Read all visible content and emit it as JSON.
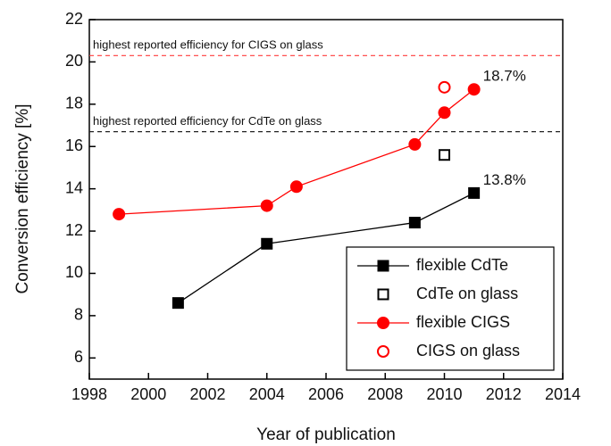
{
  "chart_data": {
    "type": "line",
    "x_label": "Year of publication",
    "y_label": "Conversion efficiency [%]",
    "xlim": [
      1998,
      2014
    ],
    "xticks": [
      1998,
      2000,
      2002,
      2004,
      2006,
      2008,
      2010,
      2012,
      2014
    ],
    "ylim": [
      5,
      22
    ],
    "yticks": [
      6,
      8,
      10,
      12,
      14,
      16,
      18,
      20,
      22
    ],
    "legend": "lower right",
    "reference_lines": [
      {
        "label": "highest reported efficiency for CIGS on glass",
        "value": 20.3,
        "color": "#ff3b3b"
      },
      {
        "label": "highest reported efficiency for CdTe on glass",
        "value": 16.7,
        "color": "#222222"
      }
    ],
    "series": [
      {
        "name": "flexible CdTe",
        "color": "#000000",
        "marker": "square",
        "filled": true,
        "line": true,
        "x": [
          2001,
          2004,
          2009,
          2011
        ],
        "values": [
          8.6,
          11.4,
          12.4,
          13.8
        ],
        "value_labels": [
          null,
          null,
          null,
          "13.8%"
        ]
      },
      {
        "name": "CdTe on glass",
        "color": "#000000",
        "marker": "square",
        "filled": false,
        "line": false,
        "x": [
          2010
        ],
        "values": [
          15.6
        ]
      },
      {
        "name": "flexible CIGS",
        "color": "#ff0000",
        "marker": "circle",
        "filled": true,
        "line": true,
        "x": [
          1999,
          2004,
          2005,
          2009,
          2010,
          2011
        ],
        "values": [
          12.8,
          13.2,
          14.1,
          16.1,
          17.6,
          18.7
        ],
        "value_labels": [
          null,
          null,
          null,
          null,
          null,
          "18.7%"
        ]
      },
      {
        "name": "CIGS on glass",
        "color": "#ff0000",
        "marker": "circle",
        "filled": false,
        "line": false,
        "x": [
          2010
        ],
        "values": [
          18.8
        ]
      }
    ]
  }
}
